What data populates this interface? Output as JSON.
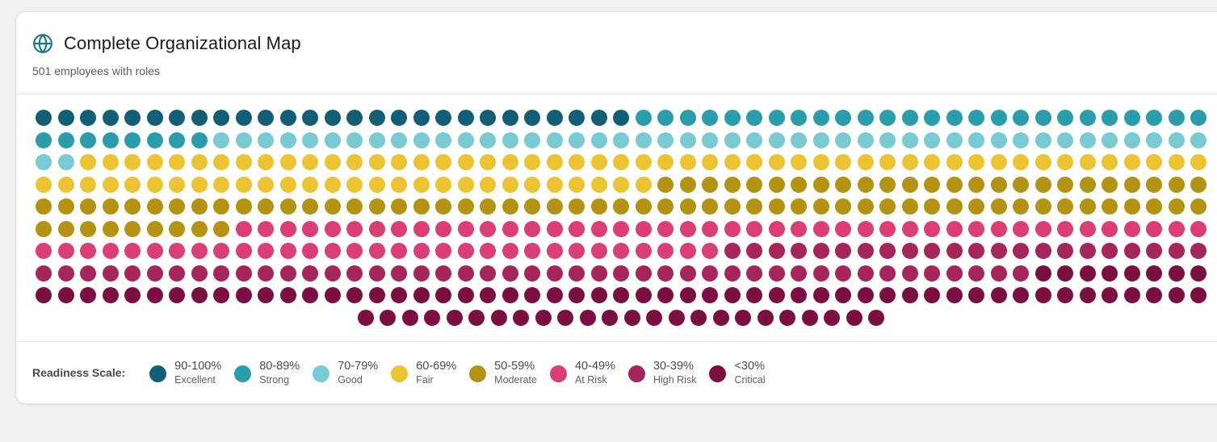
{
  "header": {
    "title": "Complete Organizational Map",
    "subtitle": "501 employees with roles",
    "icon": "globe-icon",
    "icon_color": "#1b7a8a"
  },
  "legend": {
    "label": "Readiness Scale:",
    "items": [
      {
        "range": "90-100%",
        "name": "Excellent",
        "color": "#125e74"
      },
      {
        "range": "80-89%",
        "name": "Strong",
        "color": "#2a9daa"
      },
      {
        "range": "70-79%",
        "name": "Good",
        "color": "#79cbd1"
      },
      {
        "range": "60-69%",
        "name": "Fair",
        "color": "#ecc331"
      },
      {
        "range": "50-59%",
        "name": "Moderate",
        "color": "#b49212"
      },
      {
        "range": "40-49%",
        "name": "At Risk",
        "color": "#da3e74"
      },
      {
        "range": "30-39%",
        "name": "High Risk",
        "color": "#a6255a"
      },
      {
        "range": "<30%",
        "name": "Critical",
        "color": "#7b0f40"
      }
    ]
  },
  "chart_data": {
    "type": "waffle",
    "title": "Complete Organizational Map",
    "subtitle": "501 employees with roles",
    "total": 501,
    "columns_per_row": 53,
    "categories": [
      "Excellent",
      "Strong",
      "Good",
      "Fair",
      "Moderate",
      "At Risk",
      "High Risk",
      "Critical"
    ],
    "ranges": [
      "90-100%",
      "80-89%",
      "70-79%",
      "60-69%",
      "50-59%",
      "40-49%",
      "30-39%",
      "<30%"
    ],
    "values": [
      27,
      34,
      47,
      79,
      87,
      75,
      67,
      85
    ],
    "colors": [
      "#125e74",
      "#2a9daa",
      "#79cbd1",
      "#ecc331",
      "#b49212",
      "#da3e74",
      "#a6255a",
      "#7b0f40"
    ],
    "legend_position": "bottom",
    "legend_title": "Readiness Scale:"
  }
}
